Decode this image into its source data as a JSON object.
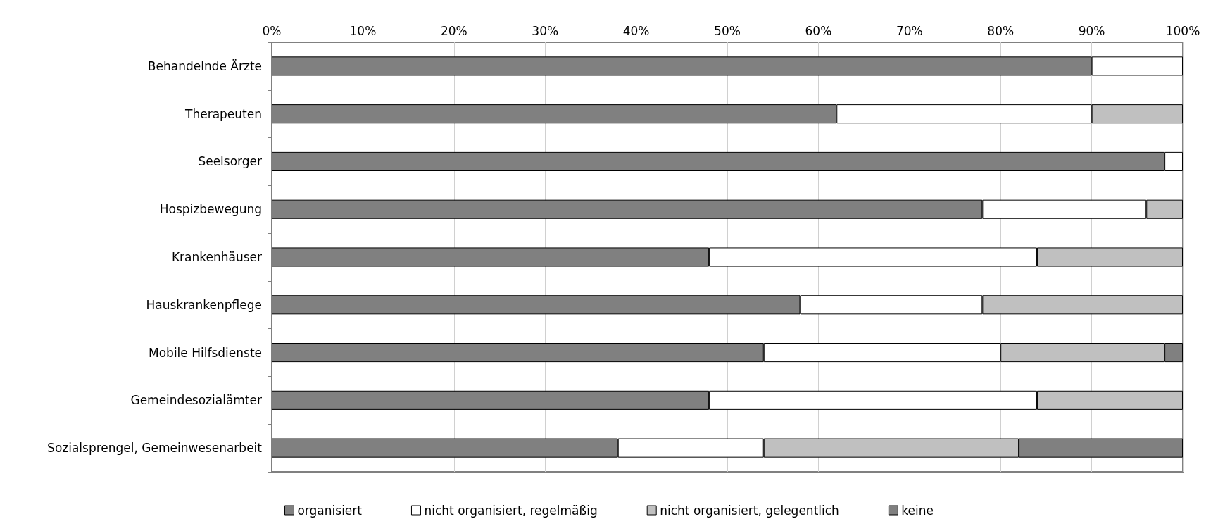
{
  "chart_data": {
    "type": "bar",
    "orientation": "horizontal",
    "stacked": true,
    "categories": [
      "Behandelnde Ärzte",
      "Therapeuten",
      "Seelsorger",
      "Hospizbewegung",
      "Krankenhäuser",
      "Hauskrankenpflege",
      "Mobile Hilfsdienste",
      "Gemeindesozialämter",
      "Sozialsprengel, Gemeinwesenarbeit"
    ],
    "series": [
      {
        "name": "organisiert",
        "color": "#808080",
        "values": [
          90,
          62,
          98,
          78,
          48,
          58,
          54,
          48,
          38
        ]
      },
      {
        "name": "nicht organisiert, regelmäßig",
        "color": "#ffffff",
        "values": [
          10,
          28,
          2,
          18,
          36,
          20,
          26,
          36,
          16
        ]
      },
      {
        "name": "nicht organisiert, gelegentlich",
        "color": "#c0c0c0",
        "values": [
          null,
          10,
          null,
          4,
          16,
          22,
          18,
          16,
          28
        ]
      },
      {
        "name": "keine",
        "color": "#808080",
        "values": [
          null,
          null,
          null,
          null,
          null,
          null,
          2,
          null,
          18
        ]
      }
    ],
    "xlim": [
      0,
      100
    ],
    "xticks": [
      {
        "value": 0,
        "label": "0%"
      },
      {
        "value": 10,
        "label": "10%"
      },
      {
        "value": 20,
        "label": "20%"
      },
      {
        "value": 30,
        "label": "30%"
      },
      {
        "value": 40,
        "label": "40%"
      },
      {
        "value": 50,
        "label": "50%"
      },
      {
        "value": 60,
        "label": "60%"
      },
      {
        "value": 70,
        "label": "70%"
      },
      {
        "value": 80,
        "label": "80%"
      },
      {
        "value": 90,
        "label": "90%"
      },
      {
        "value": 100,
        "label": "100%"
      }
    ],
    "grid": "x",
    "legend": "bottom"
  }
}
